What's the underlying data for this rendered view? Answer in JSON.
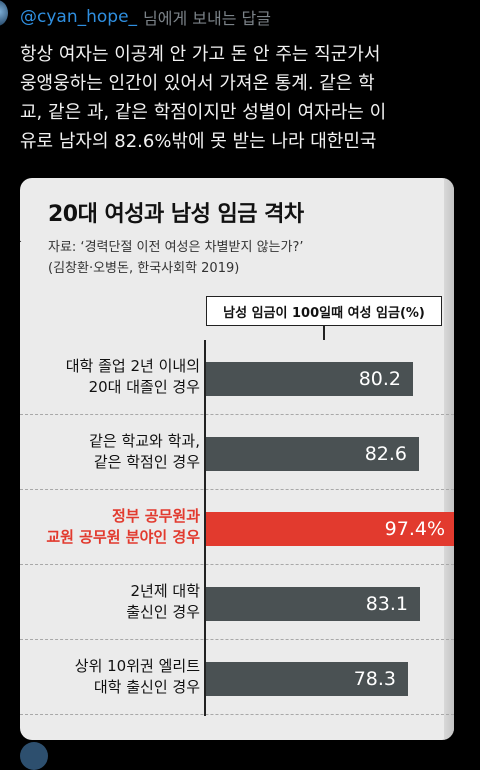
{
  "header": {
    "handle": "@cyan_hope_",
    "reply_text": "님에게 보내는 답글"
  },
  "tweet": {
    "text": "항상 여자는 이공계 안 가고 돈 안 주는 직군가서\n웅앵웅하는 인간이 있어서 가져온 통계. 같은 학\n교, 같은 과, 같은 학점이지만 성별이 여자라는 이\n유로 남자의 82.6%밖에 못 받는 나라 대한민국"
  },
  "chart_data": {
    "type": "bar",
    "title": "20대 여성과 남성 임금 격차",
    "source_line1": "자료: ‘경력단절 이전 여성은 차별받지 않는가?’",
    "source_line2": "(김창환·오병돈, 한국사회학 2019)",
    "unit_label": "남성 임금이 100일때 여성 임금(%)",
    "categories": [
      "대학 졸업 2년 이내의\n20대 대졸인 경우",
      "같은 학교와 학과,\n같은 학점인 경우",
      "정부 공무원과\n교원 공무원 분야인 경우",
      "2년제 대학\n출신인 경우",
      "상위 10위권 엘리트\n대학 출신인 경우"
    ],
    "values": [
      80.2,
      82.6,
      97.4,
      83.1,
      78.3
    ],
    "value_labels": [
      "80.2",
      "82.6",
      "97.4%",
      "83.1",
      "78.3"
    ],
    "highlight_index": 2,
    "xlim": [
      0,
      100
    ],
    "colors": {
      "bar": "#4a5153",
      "highlight": "#e23a2e"
    }
  }
}
